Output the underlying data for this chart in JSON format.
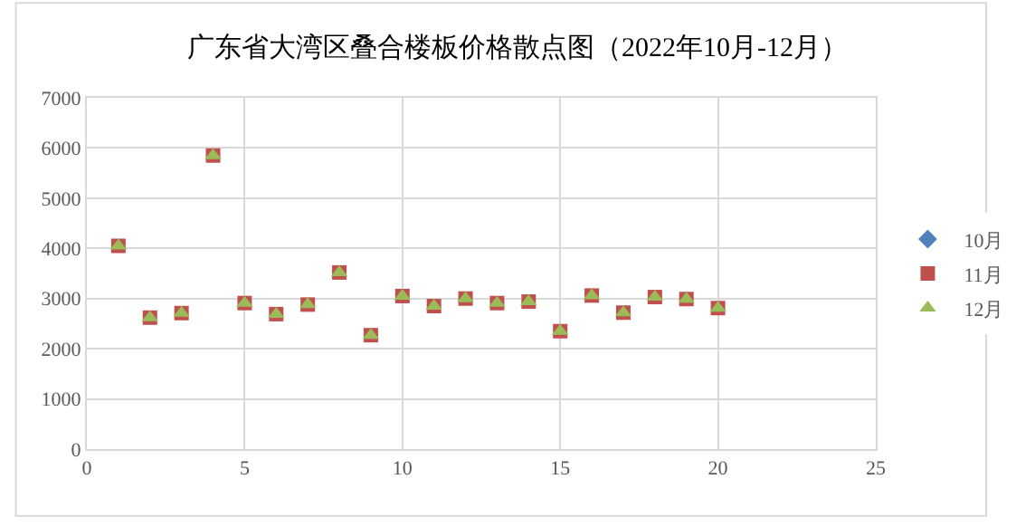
{
  "chart_data": {
    "type": "scatter",
    "title": "广东省大湾区叠合楼板价格散点图（2022年10月-12月）",
    "x": [
      1,
      2,
      3,
      4,
      5,
      6,
      7,
      8,
      9,
      10,
      11,
      12,
      13,
      14,
      15,
      16,
      17,
      18,
      19,
      20
    ],
    "series": [
      {
        "name": "10月",
        "color": "#4f81bd",
        "marker": "diamond",
        "values": [
          null,
          null,
          null,
          null,
          null,
          null,
          null,
          null,
          null,
          null,
          null,
          null,
          null,
          null,
          null,
          null,
          null,
          null,
          null,
          null
        ]
      },
      {
        "name": "11月",
        "color": "#c0504d",
        "marker": "square",
        "values": [
          4050,
          2620,
          2710,
          5850,
          2910,
          2690,
          2880,
          3520,
          2270,
          3050,
          2850,
          3000,
          2910,
          2940,
          2350,
          3060,
          2720,
          3030,
          2990,
          2810
        ]
      },
      {
        "name": "12月",
        "color": "#9bbb59",
        "marker": "triangle",
        "values": [
          4050,
          2620,
          2710,
          5850,
          2910,
          2690,
          2880,
          3520,
          2270,
          3050,
          2850,
          3000,
          2910,
          2940,
          2350,
          3060,
          2720,
          3030,
          2990,
          2810
        ]
      }
    ],
    "xlim": [
      0,
      25
    ],
    "xticks": [
      0,
      5,
      10,
      15,
      20,
      25
    ],
    "ylim": [
      0,
      7000
    ],
    "yticks": [
      0,
      1000,
      2000,
      3000,
      4000,
      5000,
      6000,
      7000
    ],
    "grid": true,
    "legend": "right"
  }
}
